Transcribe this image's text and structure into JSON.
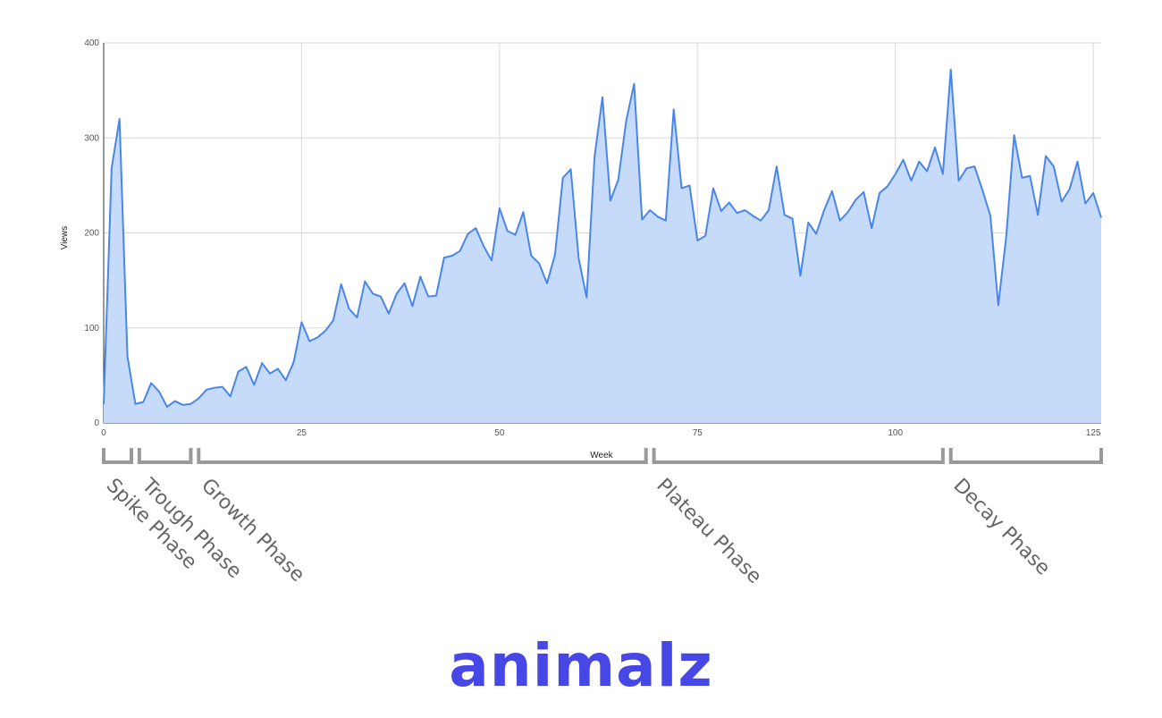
{
  "chart_data": {
    "type": "area",
    "xlabel": "Week",
    "ylabel": "Views",
    "xlim": [
      0,
      126
    ],
    "ylim": [
      0,
      400
    ],
    "x_ticks": [
      0,
      25,
      50,
      75,
      100,
      125
    ],
    "y_ticks": [
      0,
      100,
      200,
      300,
      400
    ],
    "grid": true,
    "series": [
      {
        "color": "#4a86e8",
        "fill": "#c6dafa",
        "x": [
          0,
          1,
          2,
          3,
          4,
          5,
          6,
          7,
          8,
          9,
          10,
          11,
          12,
          13,
          14,
          15,
          16,
          17,
          18,
          19,
          20,
          21,
          22,
          23,
          24,
          25,
          26,
          27,
          28,
          29,
          30,
          31,
          32,
          33,
          34,
          35,
          36,
          37,
          38,
          39,
          40,
          41,
          42,
          43,
          44,
          45,
          46,
          47,
          48,
          49,
          50,
          51,
          52,
          53,
          54,
          55,
          56,
          57,
          58,
          59,
          60,
          61,
          62,
          63,
          64,
          65,
          66,
          67,
          68,
          69,
          70,
          71,
          72,
          73,
          74,
          75,
          76,
          77,
          78,
          79,
          80,
          81,
          82,
          83,
          84,
          85,
          86,
          87,
          88,
          89,
          90,
          91,
          92,
          93,
          94,
          95,
          96,
          97,
          98,
          99,
          100,
          101,
          102,
          103,
          104,
          105,
          106,
          107,
          108,
          109,
          110,
          111,
          112,
          113,
          114,
          115,
          116,
          117,
          118,
          119,
          120,
          121,
          122,
          123,
          124,
          125,
          126
        ],
        "values": [
          20,
          268,
          320,
          70,
          20,
          22,
          42,
          33,
          17,
          23,
          19,
          20,
          26,
          35,
          37,
          38,
          28,
          54,
          59,
          40,
          63,
          52,
          57,
          45,
          64,
          106,
          86,
          90,
          97,
          108,
          146,
          120,
          111,
          149,
          136,
          133,
          115,
          136,
          147,
          123,
          154,
          133,
          134,
          174,
          176,
          181,
          199,
          205,
          186,
          171,
          226,
          202,
          198,
          222,
          176,
          168,
          147,
          177,
          258,
          267,
          173,
          132,
          280,
          343,
          234,
          256,
          318,
          357,
          214,
          224,
          217,
          213,
          330,
          247,
          250,
          192,
          197,
          247,
          223,
          232,
          221,
          224,
          218,
          213,
          224,
          270,
          219,
          215,
          155,
          211,
          199,
          224,
          244,
          213,
          222,
          235,
          243,
          205,
          242,
          249,
          262,
          277,
          255,
          275,
          265,
          290,
          262,
          372,
          255,
          268,
          270,
          245,
          218,
          124,
          196,
          303,
          258,
          260,
          219,
          281,
          270,
          233,
          246,
          275,
          231,
          242,
          216
        ]
      }
    ],
    "phases": [
      {
        "label": "Spike Phase",
        "start": 0,
        "end": 3.5
      },
      {
        "label": "Trough Phase",
        "start": 4.5,
        "end": 11
      },
      {
        "label": "Growth Phase",
        "start": 12,
        "end": 68.5
      },
      {
        "label": "Plateau Phase",
        "start": 69.5,
        "end": 106
      },
      {
        "label": "Decay Phase",
        "start": 107,
        "end": 126
      }
    ]
  },
  "logo": {
    "text": "animalz",
    "color": "#4747e6"
  }
}
